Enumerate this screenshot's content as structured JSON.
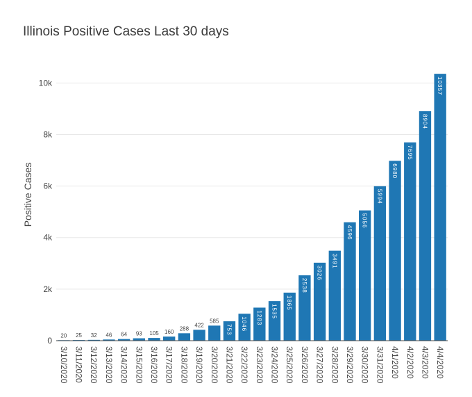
{
  "chart_data": {
    "type": "bar",
    "title": "Illinois Positive Cases Last 30 days",
    "xlabel": "",
    "ylabel": "Positive Cases",
    "categories": [
      "3/10/2020",
      "3/11/2020",
      "3/12/2020",
      "3/13/2020",
      "3/14/2020",
      "3/15/2020",
      "3/16/2020",
      "3/17/2020",
      "3/18/2020",
      "3/19/2020",
      "3/20/2020",
      "3/21/2020",
      "3/22/2020",
      "3/23/2020",
      "3/24/2020",
      "3/25/2020",
      "3/26/2020",
      "3/27/2020",
      "3/28/2020",
      "3/29/2020",
      "3/30/2020",
      "3/31/2020",
      "4/1/2020",
      "4/2/2020",
      "4/3/2020",
      "4/4/2020"
    ],
    "values": [
      20,
      25,
      32,
      46,
      64,
      93,
      105,
      160,
      288,
      422,
      585,
      753,
      1046,
      1283,
      1535,
      1865,
      2538,
      3026,
      3491,
      4596,
      5056,
      5994,
      6980,
      7695,
      8904,
      10357
    ],
    "ylim": [
      0,
      10900
    ],
    "yticks": [
      0,
      2000,
      4000,
      6000,
      8000,
      10000
    ],
    "ytick_labels": [
      "0",
      "2k",
      "4k",
      "6k",
      "8k",
      "10k"
    ],
    "grid": true,
    "bar_color": "#1f77b4",
    "data_labels": true
  }
}
